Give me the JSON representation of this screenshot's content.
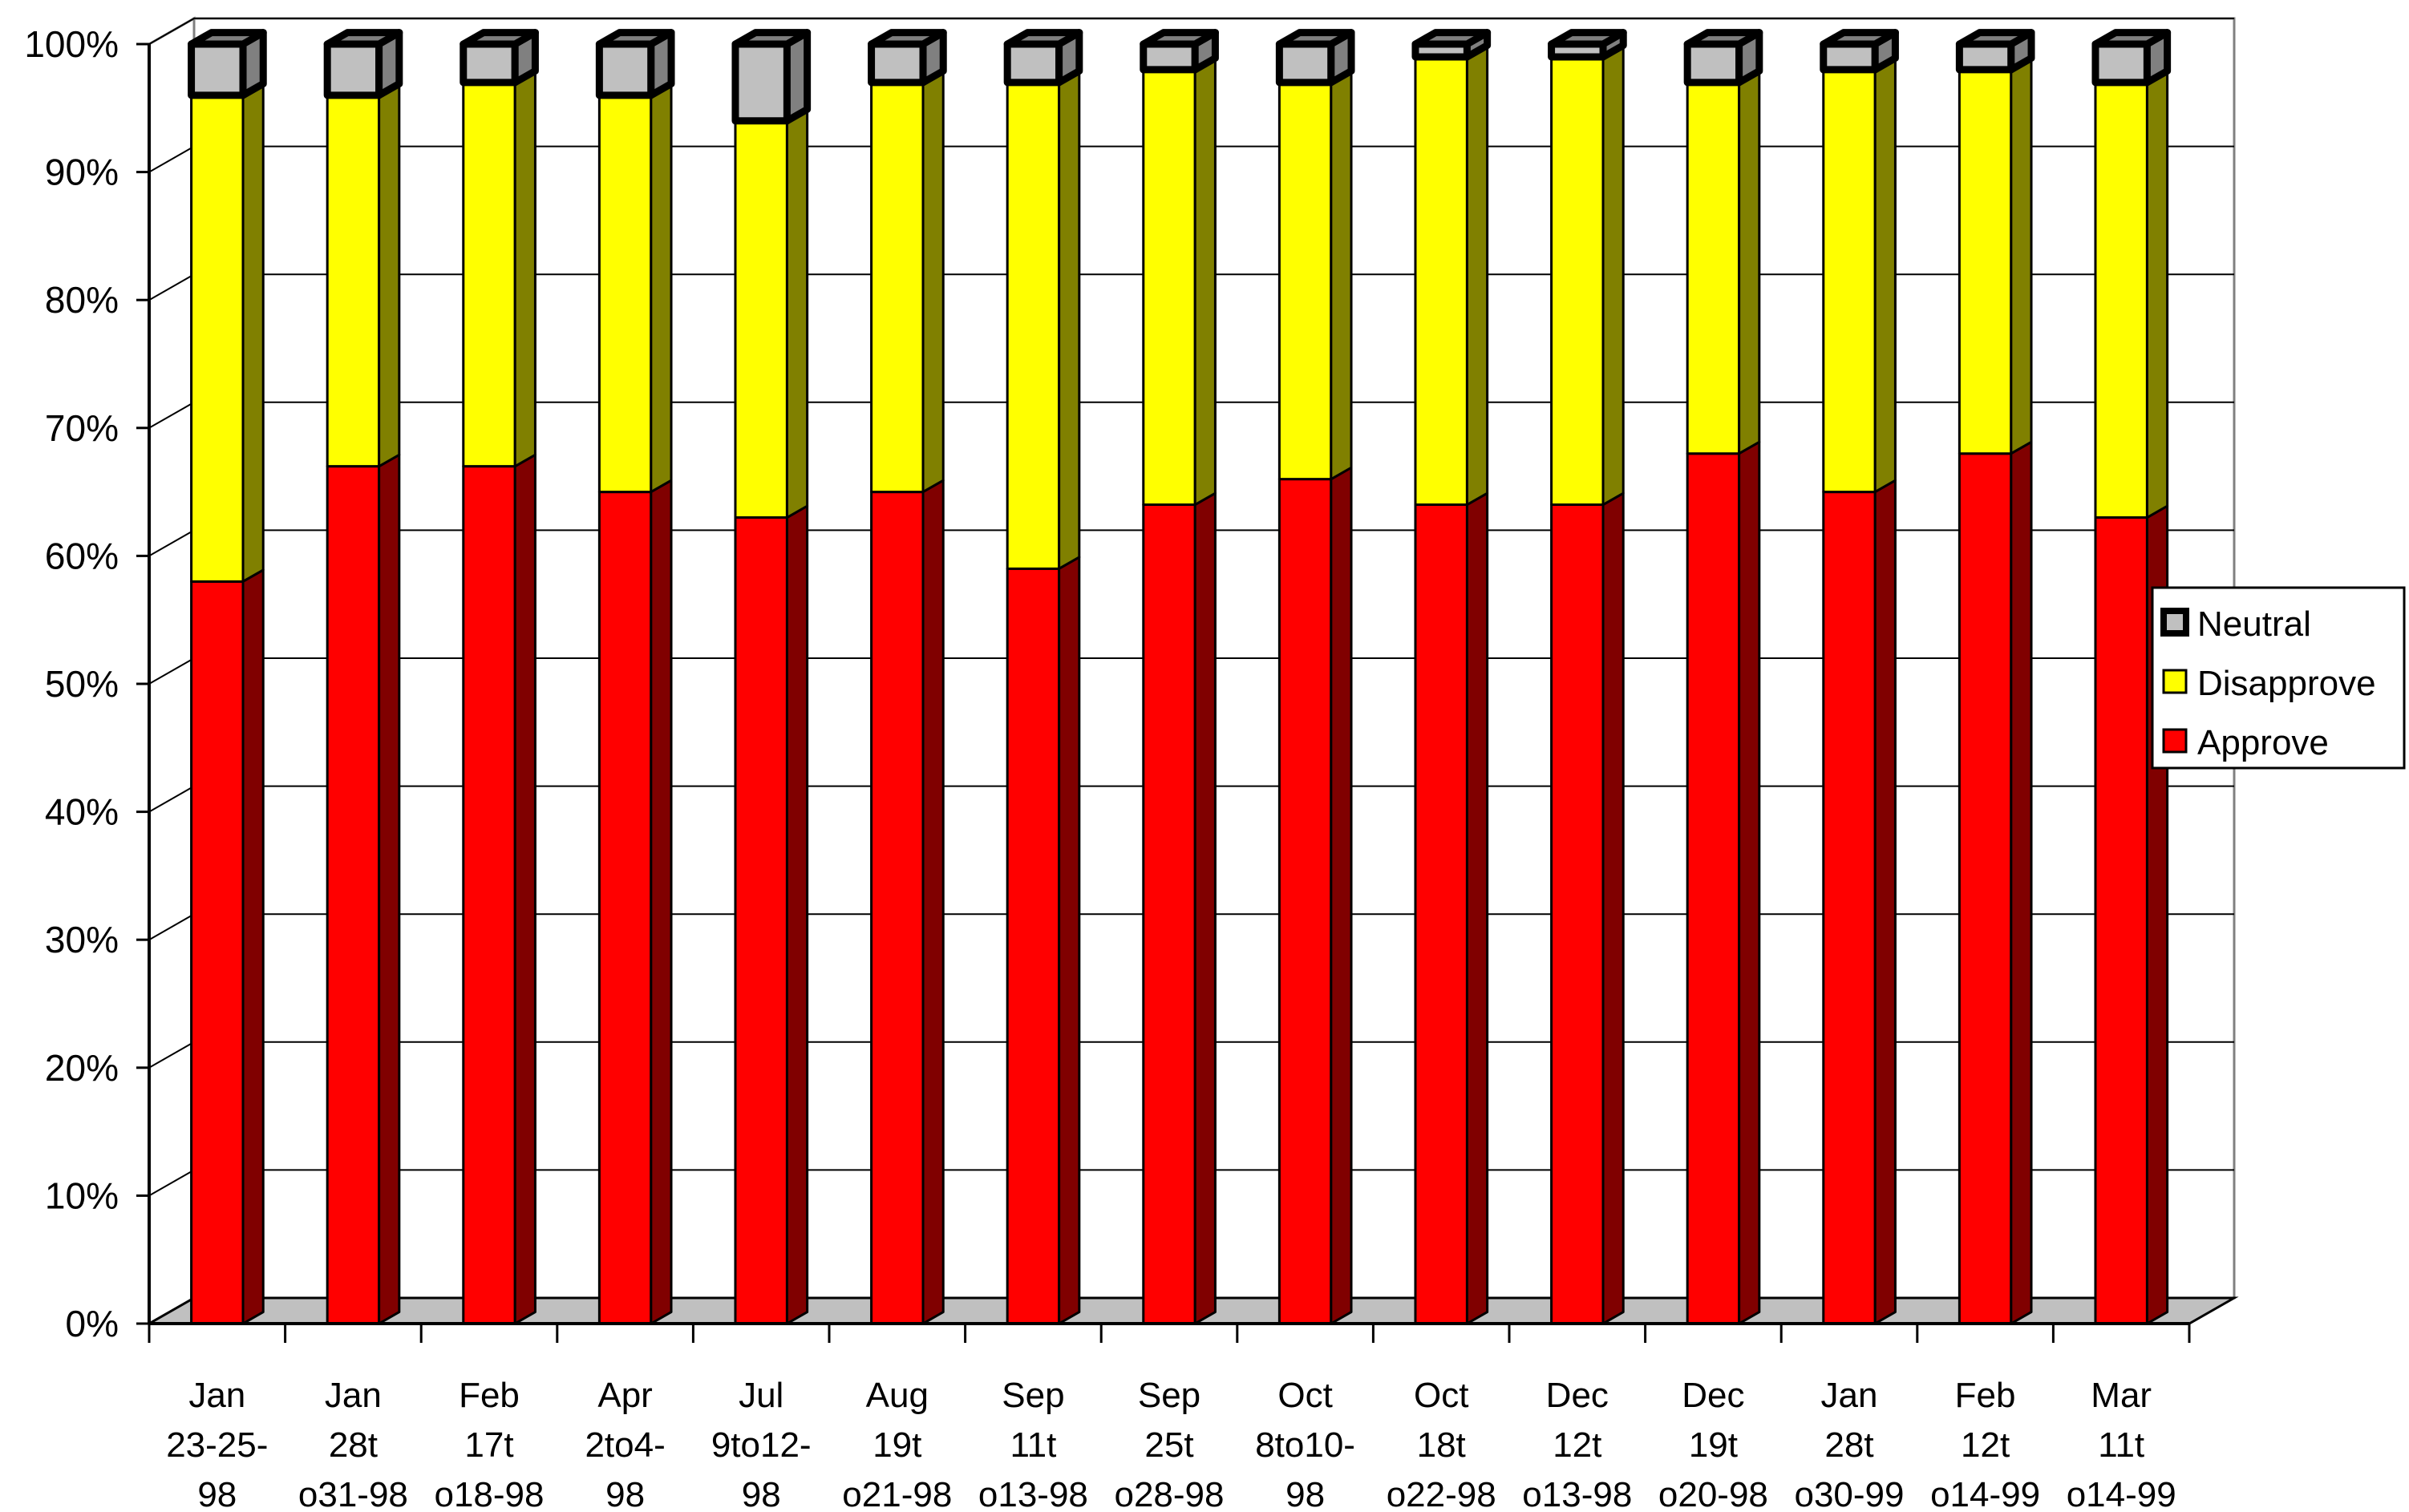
{
  "chart_data": {
    "type": "bar",
    "stacked": true,
    "percent_stacked": true,
    "three_d": true,
    "title": "",
    "xlabel": "",
    "ylabel": "",
    "ylim": [
      0,
      100
    ],
    "y_tick_labels": [
      "0%",
      "10%",
      "20%",
      "30%",
      "40%",
      "50%",
      "60%",
      "70%",
      "80%",
      "90%",
      "100%"
    ],
    "grid": true,
    "legend_position": "right",
    "categories": [
      [
        "Jan",
        "23-25-",
        "98"
      ],
      [
        "Jan",
        "28t",
        "o31-98"
      ],
      [
        "Feb",
        "17t",
        "o18-98"
      ],
      [
        "Apr",
        "2to4-",
        "98"
      ],
      [
        "Jul",
        "9to12-",
        "98"
      ],
      [
        "Aug",
        "19t",
        "o21-98"
      ],
      [
        "Sep",
        "11t",
        "o13-98"
      ],
      [
        "Sep",
        "25t",
        "o28-98"
      ],
      [
        "Oct",
        "8to10-",
        "98"
      ],
      [
        "Oct",
        "18t",
        "o22-98"
      ],
      [
        "Dec",
        "12t",
        "o13-98"
      ],
      [
        "Dec",
        "19t",
        "o20-98"
      ],
      [
        "Jan",
        "28t",
        "o30-99"
      ],
      [
        "Feb",
        "12t",
        "o14-99"
      ],
      [
        "Mar",
        "11t",
        "o14-99"
      ]
    ],
    "series": [
      {
        "name": "Approve",
        "color": "#ff0000",
        "side_color": "#800000",
        "values": [
          58,
          67,
          67,
          65,
          63,
          65,
          59,
          64,
          66,
          64,
          64,
          68,
          65,
          68,
          63
        ]
      },
      {
        "name": "Disapprove",
        "color": "#ffff00",
        "side_color": "#808000",
        "values": [
          38,
          29,
          30,
          31,
          31,
          32,
          38,
          34,
          31,
          35,
          35,
          29,
          33,
          30,
          34
        ]
      },
      {
        "name": "Neutral",
        "color": "#c0c0c0",
        "side_color": "#808080",
        "values": [
          4,
          4,
          3,
          4,
          6,
          3,
          3,
          2,
          3,
          1,
          1,
          3,
          2,
          2,
          3
        ]
      }
    ],
    "legend": [
      "Neutral",
      "Disapprove",
      "Approve"
    ]
  }
}
